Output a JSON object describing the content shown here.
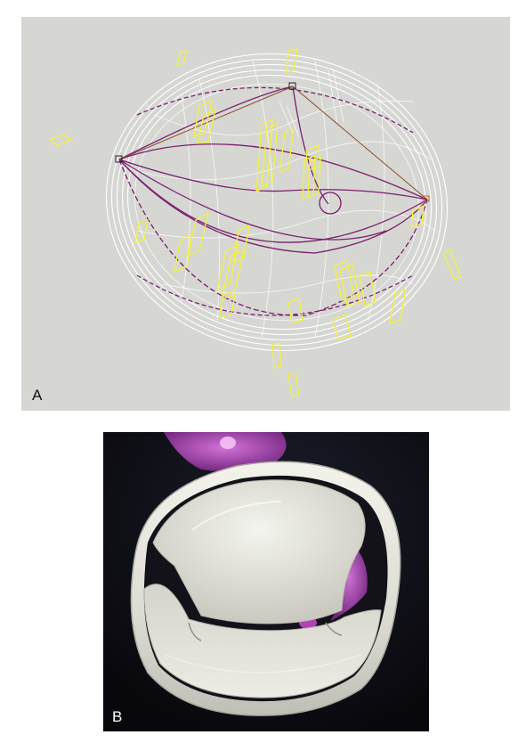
{
  "figure": {
    "panels": [
      {
        "label": "A",
        "description_icon": "wireframe-valve-model"
      },
      {
        "label": "B",
        "description_icon": "rendered-valve-surface"
      }
    ]
  },
  "colors": {
    "panel_a_background": "#d6d7d3",
    "wireframe": "#ffffff",
    "curves": "#7a1f6e",
    "markers": "#f2f23a",
    "panel_b_background": "#0d0d12",
    "surface": "#e4e4dc",
    "accent": "#b03ab8"
  }
}
